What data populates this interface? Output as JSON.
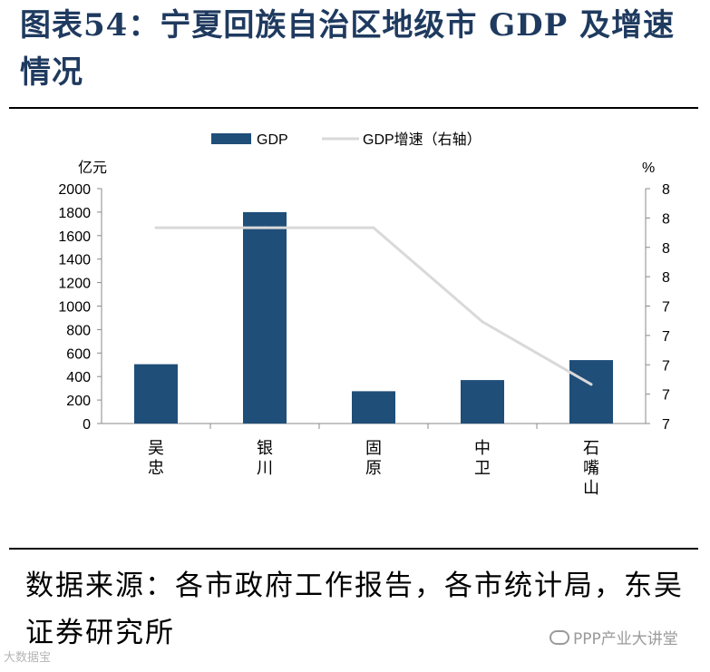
{
  "header": {
    "title": "图表54：宁夏回族自治区地级市 GDP 及增速情况"
  },
  "chart_data": {
    "type": "bar",
    "categories": [
      "吴忠",
      "银川",
      "固原",
      "中卫",
      "石嘴山"
    ],
    "category_labels": [
      [
        "吴",
        "忠"
      ],
      [
        "银",
        "川"
      ],
      [
        "固",
        "原"
      ],
      [
        "中",
        "卫"
      ],
      [
        "石",
        "嘴",
        "山"
      ]
    ],
    "series": [
      {
        "name": "GDP",
        "type": "bar",
        "axis": "left",
        "color": "#1f4e79",
        "values": [
          505,
          1800,
          275,
          370,
          540
        ]
      },
      {
        "name": "GDP增速（右轴）",
        "type": "line",
        "axis": "right",
        "color": "#d9d9d9",
        "values": [
          8.0,
          8.0,
          8.0,
          7.4,
          7.0
        ]
      }
    ],
    "y_left": {
      "unit": "亿元",
      "min": 0,
      "max": 2000,
      "ticks": [
        "0",
        "200",
        "400",
        "600",
        "800",
        "1000",
        "1200",
        "1400",
        "1600",
        "1800",
        "2000"
      ]
    },
    "y_right": {
      "unit": "%",
      "min": 6.75,
      "max": 8.25,
      "ticks": [
        "7",
        "7",
        "7",
        "7",
        "7",
        "8",
        "8",
        "8",
        "8"
      ]
    }
  },
  "footer": {
    "source": "数据来源：各市政府工作报告，各市统计局，东吴证券研究所"
  },
  "watermarks": {
    "left": "大数据宝",
    "right": "PPP产业大讲堂"
  }
}
